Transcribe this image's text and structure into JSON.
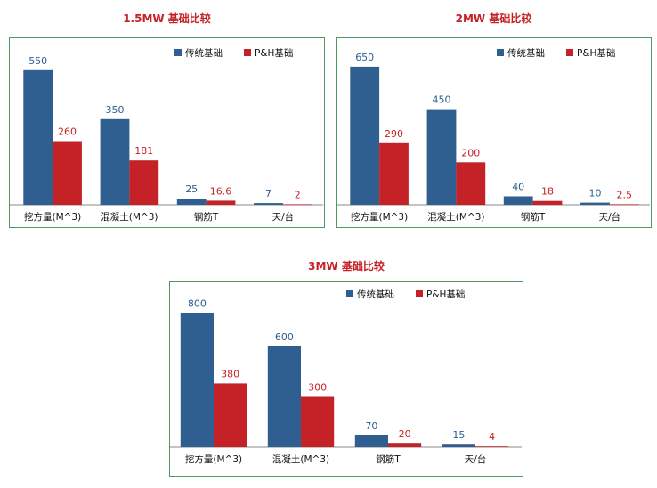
{
  "colors": {
    "traditional": "#2f5e91",
    "ph": "#c52227",
    "title": "#c52227",
    "border": "#4e9a63"
  },
  "chart_data": [
    {
      "type": "bar",
      "title": "1.5MW 基础比较",
      "categories": [
        "挖方量(M^3)",
        "混凝土(M^3)",
        "钢筋T",
        "天/台"
      ],
      "series": [
        {
          "name": "传统基础",
          "values": [
            550,
            350,
            25,
            7
          ],
          "labels": [
            "550",
            "350",
            "25",
            "7"
          ]
        },
        {
          "name": "P&H基础",
          "values": [
            260,
            181,
            16.6,
            2
          ],
          "labels": [
            "260",
            "181",
            "16.6",
            "2"
          ]
        }
      ],
      "ylim": [
        0,
        600
      ],
      "legend": "top-right",
      "grid": false
    },
    {
      "type": "bar",
      "title": "2MW 基础比较",
      "categories": [
        "挖方量(M^3)",
        "混凝土(M^3)",
        "钢筋T",
        "天/台"
      ],
      "series": [
        {
          "name": "传统基础",
          "values": [
            650,
            450,
            40,
            10
          ],
          "labels": [
            "650",
            "450",
            "40",
            "10"
          ]
        },
        {
          "name": "P&H基础",
          "values": [
            290,
            200,
            18,
            2.5
          ],
          "labels": [
            "290",
            "200",
            "18",
            "2.5"
          ]
        }
      ],
      "ylim": [
        0,
        700
      ],
      "legend": "top-right",
      "grid": false
    },
    {
      "type": "bar",
      "title": "3MW 基础比较",
      "categories": [
        "挖方量(M^3)",
        "混凝土(M^3)",
        "钢筋T",
        "天/台"
      ],
      "series": [
        {
          "name": "传统基础",
          "values": [
            800,
            600,
            70,
            15
          ],
          "labels": [
            "800",
            "600",
            "70",
            "15"
          ]
        },
        {
          "name": "P&H基础",
          "values": [
            380,
            300,
            20,
            4
          ],
          "labels": [
            "380",
            "300",
            "20",
            "4"
          ]
        }
      ],
      "ylim": [
        0,
        860
      ],
      "legend": "top-right",
      "grid": false
    }
  ]
}
